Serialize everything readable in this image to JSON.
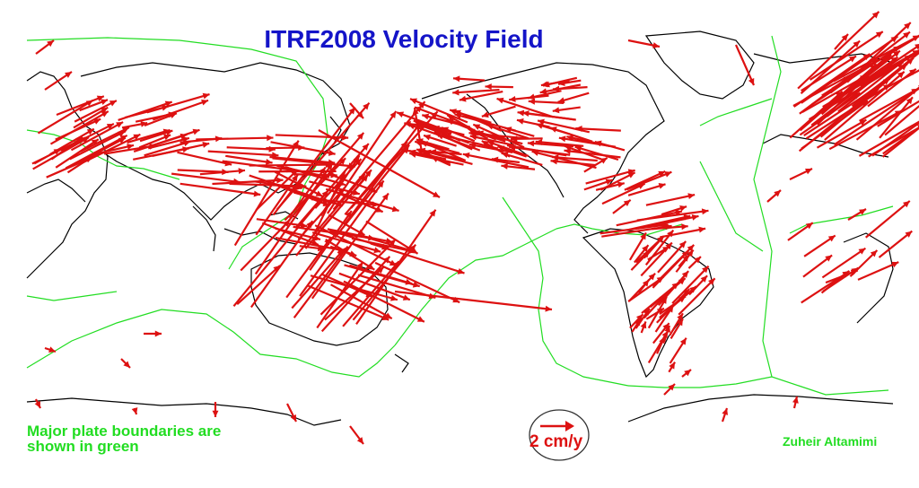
{
  "title": "ITRF2008 Velocity Field",
  "note": {
    "line1": "Major plate boundaries are",
    "line2": "shown in green"
  },
  "scale": {
    "label": "2 cm/y"
  },
  "author": "Zuheir Altamimi",
  "colors": {
    "title": "#1414c8",
    "vector": "#dd1111",
    "plate_boundary": "#22dd22",
    "coastline": "#000000",
    "background": "#ffffff"
  }
}
